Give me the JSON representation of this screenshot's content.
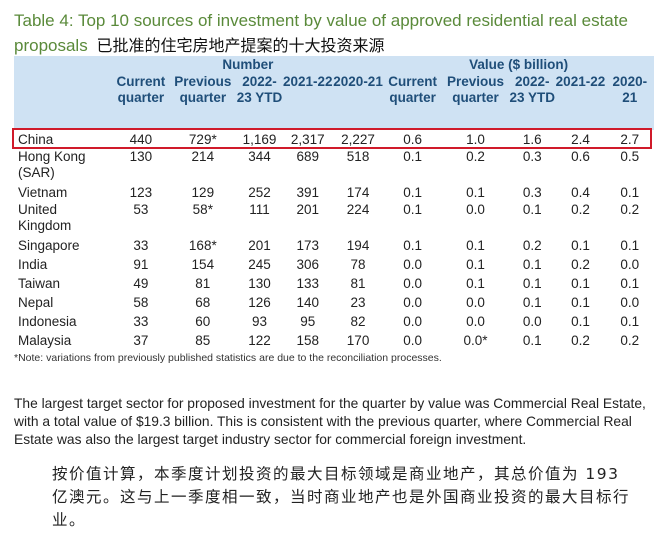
{
  "title": {
    "en": "Table 4: Top 10 sources of investment by value of approved residential real estate proposals",
    "cn": "已批准的住宅房地产提案的十大投资来源"
  },
  "table": {
    "groups": [
      "Number",
      "Value ($ billion)"
    ],
    "subheaders": [
      "Current quarter",
      "Previous quarter",
      "2022-23 YTD",
      "2021-22",
      "2020-21",
      "Current quarter",
      "Previous quarter",
      "2022-23 YTD",
      "2021-22",
      "2020-21"
    ],
    "rows": [
      {
        "name": "China",
        "cells": [
          "440",
          "729*",
          "1,169",
          "2,317",
          "2,227",
          "0.6",
          "1.0",
          "1.6",
          "2.4",
          "2.7"
        ]
      },
      {
        "name": "Hong Kong (SAR)",
        "cells": [
          "130",
          "214",
          "344",
          "689",
          "518",
          "0.1",
          "0.2",
          "0.3",
          "0.6",
          "0.5"
        ]
      },
      {
        "name": "Vietnam",
        "cells": [
          "123",
          "129",
          "252",
          "391",
          "174",
          "0.1",
          "0.1",
          "0.3",
          "0.4",
          "0.1"
        ]
      },
      {
        "name": "United Kingdom",
        "cells": [
          "53",
          "58*",
          "111",
          "201",
          "224",
          "0.1",
          "0.0",
          "0.1",
          "0.2",
          "0.2"
        ]
      },
      {
        "name": "Singapore",
        "cells": [
          "33",
          "168*",
          "201",
          "173",
          "194",
          "0.1",
          "0.1",
          "0.2",
          "0.1",
          "0.1"
        ]
      },
      {
        "name": "India",
        "cells": [
          "91",
          "154",
          "245",
          "306",
          "78",
          "0.0",
          "0.1",
          "0.1",
          "0.2",
          "0.0"
        ]
      },
      {
        "name": "Taiwan",
        "cells": [
          "49",
          "81",
          "130",
          "133",
          "81",
          "0.0",
          "0.1",
          "0.1",
          "0.1",
          "0.1"
        ]
      },
      {
        "name": "Nepal",
        "cells": [
          "58",
          "68",
          "126",
          "140",
          "23",
          "0.0",
          "0.0",
          "0.1",
          "0.1",
          "0.0"
        ]
      },
      {
        "name": "Indonesia",
        "cells": [
          "33",
          "60",
          "93",
          "95",
          "82",
          "0.0",
          "0.0",
          "0.0",
          "0.1",
          "0.1"
        ]
      },
      {
        "name": "Malaysia",
        "cells": [
          "37",
          "85",
          "122",
          "158",
          "170",
          "0.0",
          "0.0*",
          "0.1",
          "0.2",
          "0.2"
        ]
      }
    ],
    "note": "*Note: variations from previously published statistics are due to the reconciliation processes."
  },
  "paragraph_en": "The largest target sector for proposed investment for the quarter by value was Commercial Real Estate, with a total value of $19.3 billion. This is consistent with the previous quarter, where Commercial Real Estate was also the largest target industry sector for commercial foreign investment.",
  "paragraph_cn": "按价值计算，本季度计划投资的最大目标领域是商业地产，其总价值为 193 亿澳元。这与上一季度相一致，当时商业地产也是外国商业投资的最大目标行业。",
  "colors": {
    "title_green": "#5a8a3a",
    "header_bg": "#cfe2f3",
    "header_text": "#1f4e79",
    "highlight_red": "#d01a2a"
  }
}
